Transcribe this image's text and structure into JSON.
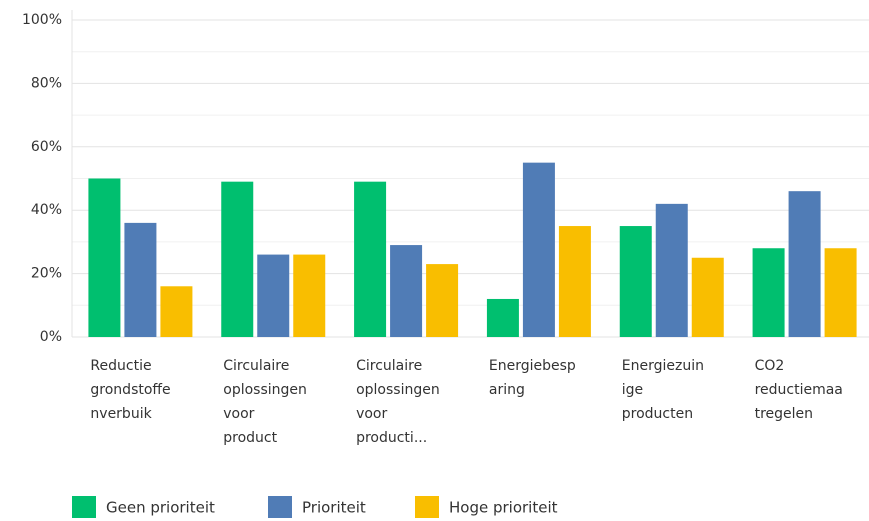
{
  "chart_data": {
    "type": "bar",
    "categories": [
      "Reductie\ngrondstoffe\nnverbuik",
      "Circulaire\noplossingen\nvoor\nproduct",
      "Circulaire\noplossingen\nvoor\nproducti...",
      "Energiebesp\naring",
      "Energiezuin\nige\nproducten",
      "CO2\nreductiemaa\ntregelen"
    ],
    "series": [
      {
        "name": "Geen prioriteit",
        "color": "#00bf6f",
        "values": [
          50,
          49,
          49,
          12,
          35,
          28
        ]
      },
      {
        "name": "Prioriteit",
        "color": "#507cb6",
        "values": [
          36,
          26,
          29,
          55,
          42,
          46
        ]
      },
      {
        "name": "Hoge prioriteit",
        "color": "#f9be00",
        "values": [
          16,
          26,
          23,
          35,
          25,
          28
        ]
      }
    ],
    "ylim": [
      0,
      100
    ],
    "yticks": [
      {
        "value": 0,
        "label": "0%"
      },
      {
        "value": 20,
        "label": "20%"
      },
      {
        "value": 40,
        "label": "40%"
      },
      {
        "value": 60,
        "label": "60%"
      },
      {
        "value": 80,
        "label": "80%"
      },
      {
        "value": 100,
        "label": "100%"
      }
    ],
    "minor_yticks": [
      10,
      30,
      50,
      70,
      90
    ],
    "grid": true,
    "legend": "bottom"
  }
}
